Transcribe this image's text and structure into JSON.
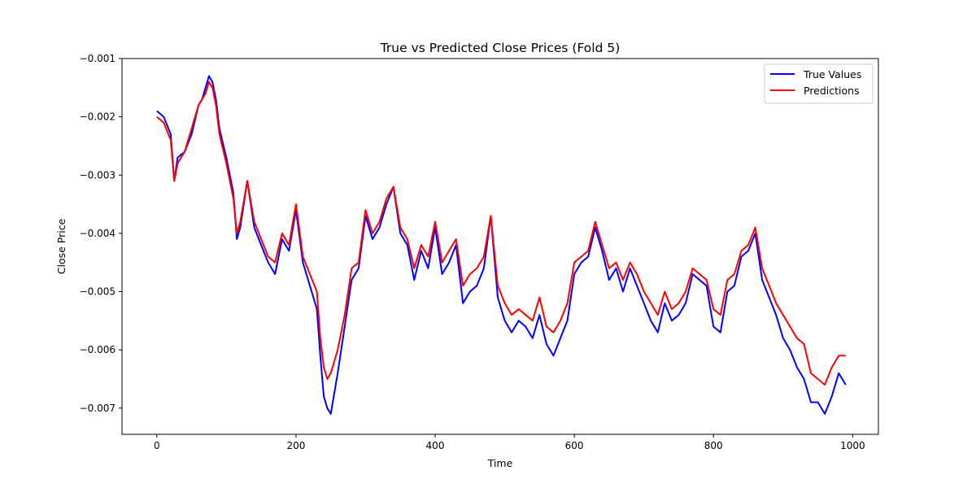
{
  "chart_data": {
    "type": "line",
    "title": "True vs Predicted Close Prices (Fold 5)",
    "xlabel": "Time",
    "ylabel": "Close Price",
    "xlim": [
      -50,
      1037
    ],
    "ylim": [
      -0.00745,
      -0.001
    ],
    "xticks": [
      0,
      200,
      400,
      600,
      800,
      1000
    ],
    "yticks": [
      -0.007,
      -0.006,
      -0.005,
      -0.004,
      -0.003,
      -0.002,
      -0.001
    ],
    "ytick_labels": [
      "−0.007",
      "−0.006",
      "−0.005",
      "−0.004",
      "−0.003",
      "−0.002",
      "−0.001"
    ],
    "grid": false,
    "legend_position": "top-right",
    "x": [
      0,
      10,
      20,
      25,
      30,
      40,
      50,
      60,
      65,
      70,
      75,
      80,
      85,
      90,
      100,
      110,
      115,
      120,
      130,
      140,
      150,
      160,
      170,
      180,
      190,
      200,
      210,
      220,
      230,
      235,
      240,
      245,
      250,
      260,
      270,
      280,
      290,
      300,
      310,
      320,
      330,
      340,
      350,
      360,
      370,
      380,
      390,
      400,
      410,
      420,
      430,
      440,
      450,
      460,
      470,
      480,
      490,
      500,
      510,
      520,
      530,
      540,
      550,
      560,
      570,
      580,
      590,
      600,
      610,
      620,
      630,
      640,
      650,
      660,
      670,
      680,
      690,
      700,
      710,
      720,
      730,
      740,
      750,
      760,
      770,
      780,
      790,
      800,
      810,
      820,
      830,
      840,
      850,
      860,
      870,
      880,
      890,
      900,
      910,
      920,
      930,
      940,
      950,
      960,
      970,
      980,
      990
    ],
    "series": [
      {
        "name": "True Values",
        "color": "#0000ff",
        "values": [
          -0.0019,
          -0.002,
          -0.0023,
          -0.0031,
          -0.0027,
          -0.0026,
          -0.0023,
          -0.0018,
          -0.0017,
          -0.0015,
          -0.0013,
          -0.0014,
          -0.0017,
          -0.0022,
          -0.0027,
          -0.0033,
          -0.0041,
          -0.0039,
          -0.0031,
          -0.0039,
          -0.0042,
          -0.0045,
          -0.0047,
          -0.0041,
          -0.0043,
          -0.0036,
          -0.0045,
          -0.0049,
          -0.0053,
          -0.0061,
          -0.0068,
          -0.007,
          -0.0071,
          -0.0064,
          -0.0056,
          -0.0048,
          -0.0046,
          -0.0037,
          -0.0041,
          -0.0039,
          -0.0035,
          -0.0032,
          -0.004,
          -0.0042,
          -0.0048,
          -0.0043,
          -0.0046,
          -0.0039,
          -0.0047,
          -0.0045,
          -0.0042,
          -0.0052,
          -0.005,
          -0.0049,
          -0.0046,
          -0.0037,
          -0.0051,
          -0.0055,
          -0.0057,
          -0.0055,
          -0.0056,
          -0.0058,
          -0.0054,
          -0.0059,
          -0.0061,
          -0.0058,
          -0.0055,
          -0.0047,
          -0.0045,
          -0.0044,
          -0.0039,
          -0.0043,
          -0.0048,
          -0.0046,
          -0.005,
          -0.0046,
          -0.0049,
          -0.0052,
          -0.0055,
          -0.0057,
          -0.0052,
          -0.0055,
          -0.0054,
          -0.0052,
          -0.0047,
          -0.0048,
          -0.0049,
          -0.0056,
          -0.0057,
          -0.005,
          -0.0049,
          -0.0044,
          -0.0043,
          -0.004,
          -0.0048,
          -0.0051,
          -0.0054,
          -0.0058,
          -0.006,
          -0.0063,
          -0.0065,
          -0.0069,
          -0.0069,
          -0.0071,
          -0.0068,
          -0.0064,
          -0.0066
        ]
      },
      {
        "name": "Predictions",
        "color": "#ff0000",
        "values": [
          -0.002,
          -0.0021,
          -0.0024,
          -0.0031,
          -0.0028,
          -0.0026,
          -0.0022,
          -0.0018,
          -0.0017,
          -0.0016,
          -0.0014,
          -0.0015,
          -0.0018,
          -0.0023,
          -0.0028,
          -0.0034,
          -0.004,
          -0.0038,
          -0.0031,
          -0.0038,
          -0.0041,
          -0.0044,
          -0.0045,
          -0.004,
          -0.0042,
          -0.0035,
          -0.0044,
          -0.0047,
          -0.005,
          -0.0058,
          -0.0063,
          -0.0065,
          -0.0064,
          -0.006,
          -0.0054,
          -0.0046,
          -0.0045,
          -0.0036,
          -0.004,
          -0.0038,
          -0.0034,
          -0.0032,
          -0.0039,
          -0.0041,
          -0.0046,
          -0.0042,
          -0.0044,
          -0.0038,
          -0.0045,
          -0.0043,
          -0.0041,
          -0.0049,
          -0.0047,
          -0.0046,
          -0.0044,
          -0.0037,
          -0.0049,
          -0.0052,
          -0.0054,
          -0.0053,
          -0.0054,
          -0.0055,
          -0.0051,
          -0.0056,
          -0.0057,
          -0.0055,
          -0.0052,
          -0.0045,
          -0.0044,
          -0.0043,
          -0.0038,
          -0.0042,
          -0.0046,
          -0.0045,
          -0.0048,
          -0.0045,
          -0.0047,
          -0.005,
          -0.0052,
          -0.0054,
          -0.005,
          -0.0053,
          -0.0052,
          -0.005,
          -0.0046,
          -0.0047,
          -0.0048,
          -0.0053,
          -0.0054,
          -0.0048,
          -0.0047,
          -0.0043,
          -0.0042,
          -0.0039,
          -0.0046,
          -0.0049,
          -0.0052,
          -0.0054,
          -0.0056,
          -0.0058,
          -0.0059,
          -0.0064,
          -0.0065,
          -0.0066,
          -0.0063,
          -0.0061,
          -0.0061
        ]
      }
    ]
  }
}
